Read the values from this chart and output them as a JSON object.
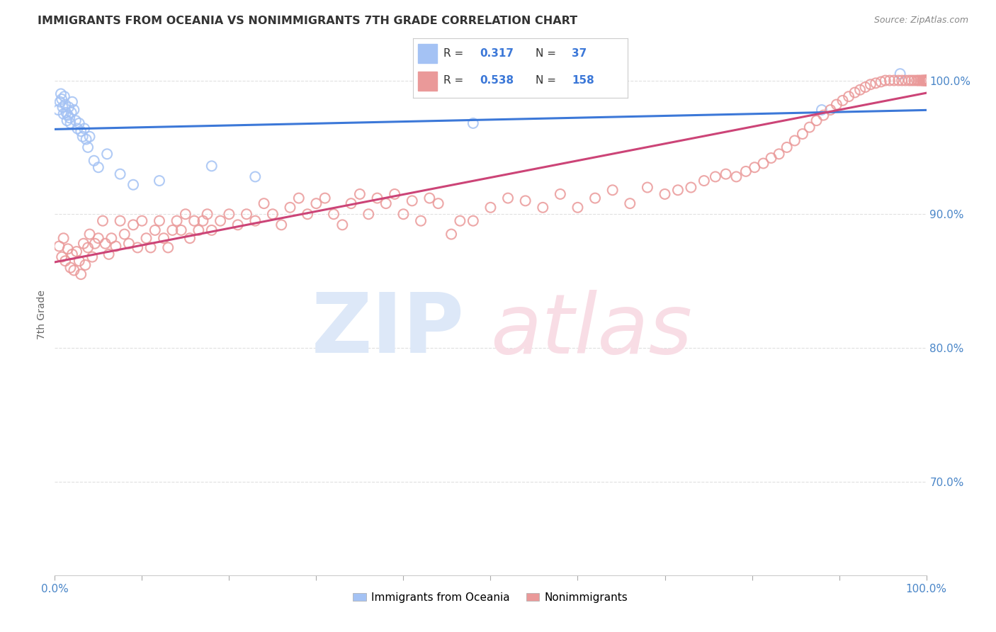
{
  "title": "IMMIGRANTS FROM OCEANIA VS NONIMMIGRANTS 7TH GRADE CORRELATION CHART",
  "source": "Source: ZipAtlas.com",
  "ylabel": "7th Grade",
  "xlim": [
    0.0,
    1.0
  ],
  "ylim": [
    0.63,
    1.02
  ],
  "yticks": [
    0.7,
    0.8,
    0.9,
    1.0
  ],
  "ytick_labels": [
    "70.0%",
    "80.0%",
    "90.0%",
    "100.0%"
  ],
  "blue_color": "#a4c2f4",
  "pink_color": "#ea9999",
  "line_blue": "#3c78d8",
  "line_pink": "#cc4477",
  "axis_label_color": "#4a86c8",
  "background_color": "#ffffff",
  "grid_color": "#e0e0e0",
  "R1": "0.317",
  "N1": "37",
  "R2": "0.538",
  "N2": "158",
  "blue_x": [
    0.004,
    0.006,
    0.007,
    0.008,
    0.009,
    0.01,
    0.011,
    0.012,
    0.013,
    0.014,
    0.015,
    0.016,
    0.017,
    0.018,
    0.019,
    0.02,
    0.022,
    0.024,
    0.026,
    0.028,
    0.03,
    0.032,
    0.034,
    0.036,
    0.038,
    0.04,
    0.045,
    0.05,
    0.06,
    0.075,
    0.09,
    0.12,
    0.18,
    0.23,
    0.48,
    0.88,
    0.97
  ],
  "blue_y": [
    0.978,
    0.984,
    0.99,
    0.986,
    0.98,
    0.975,
    0.988,
    0.982,
    0.976,
    0.97,
    0.974,
    0.98,
    0.972,
    0.968,
    0.976,
    0.984,
    0.978,
    0.97,
    0.964,
    0.968,
    0.962,
    0.958,
    0.964,
    0.956,
    0.95,
    0.958,
    0.94,
    0.935,
    0.945,
    0.93,
    0.922,
    0.925,
    0.936,
    0.928,
    0.968,
    0.978,
    1.005
  ],
  "pink_x": [
    0.005,
    0.008,
    0.01,
    0.012,
    0.015,
    0.018,
    0.02,
    0.022,
    0.025,
    0.028,
    0.03,
    0.033,
    0.035,
    0.038,
    0.04,
    0.043,
    0.046,
    0.05,
    0.055,
    0.058,
    0.062,
    0.065,
    0.07,
    0.075,
    0.08,
    0.085,
    0.09,
    0.095,
    0.1,
    0.105,
    0.11,
    0.115,
    0.12,
    0.125,
    0.13,
    0.135,
    0.14,
    0.145,
    0.15,
    0.155,
    0.16,
    0.165,
    0.17,
    0.175,
    0.18,
    0.19,
    0.2,
    0.21,
    0.22,
    0.23,
    0.24,
    0.25,
    0.26,
    0.27,
    0.28,
    0.29,
    0.3,
    0.31,
    0.32,
    0.33,
    0.34,
    0.35,
    0.36,
    0.37,
    0.38,
    0.39,
    0.4,
    0.41,
    0.42,
    0.43,
    0.44,
    0.455,
    0.465,
    0.48,
    0.5,
    0.52,
    0.54,
    0.56,
    0.58,
    0.6,
    0.62,
    0.64,
    0.66,
    0.68,
    0.7,
    0.715,
    0.73,
    0.745,
    0.758,
    0.77,
    0.782,
    0.793,
    0.803,
    0.813,
    0.822,
    0.831,
    0.84,
    0.849,
    0.858,
    0.866,
    0.874,
    0.882,
    0.89,
    0.897,
    0.904,
    0.911,
    0.918,
    0.924,
    0.93,
    0.936,
    0.942,
    0.948,
    0.953,
    0.958,
    0.963,
    0.968,
    0.972,
    0.976,
    0.98,
    0.983,
    0.986,
    0.989,
    0.991,
    0.993,
    0.995,
    0.996,
    0.997,
    0.998,
    0.999,
    0.999,
    1.0,
    1.0,
    1.001,
    1.001,
    1.001,
    1.002,
    1.002,
    1.002,
    1.002,
    1.002,
    1.002,
    1.002,
    1.002,
    1.002,
    1.002,
    1.002,
    1.002,
    1.002,
    1.002,
    1.002,
    1.002,
    1.002,
    1.002,
    1.002,
    1.002,
    1.002,
    1.002,
    1.002
  ],
  "pink_y": [
    0.876,
    0.868,
    0.882,
    0.865,
    0.874,
    0.86,
    0.87,
    0.858,
    0.872,
    0.865,
    0.855,
    0.878,
    0.862,
    0.875,
    0.885,
    0.868,
    0.878,
    0.882,
    0.895,
    0.878,
    0.87,
    0.882,
    0.876,
    0.895,
    0.885,
    0.878,
    0.892,
    0.875,
    0.895,
    0.882,
    0.875,
    0.888,
    0.895,
    0.882,
    0.875,
    0.888,
    0.895,
    0.888,
    0.9,
    0.882,
    0.895,
    0.888,
    0.895,
    0.9,
    0.888,
    0.895,
    0.9,
    0.892,
    0.9,
    0.895,
    0.908,
    0.9,
    0.892,
    0.905,
    0.912,
    0.9,
    0.908,
    0.912,
    0.9,
    0.892,
    0.908,
    0.915,
    0.9,
    0.912,
    0.908,
    0.915,
    0.9,
    0.91,
    0.895,
    0.912,
    0.908,
    0.885,
    0.895,
    0.895,
    0.905,
    0.912,
    0.91,
    0.905,
    0.915,
    0.905,
    0.912,
    0.918,
    0.908,
    0.92,
    0.915,
    0.918,
    0.92,
    0.925,
    0.928,
    0.93,
    0.928,
    0.932,
    0.935,
    0.938,
    0.942,
    0.945,
    0.95,
    0.955,
    0.96,
    0.965,
    0.97,
    0.974,
    0.978,
    0.982,
    0.985,
    0.988,
    0.991,
    0.993,
    0.995,
    0.997,
    0.998,
    0.999,
    1.0,
    1.0,
    1.0,
    1.0,
    1.0,
    1.0,
    1.0,
    1.0,
    1.0,
    1.0,
    1.0,
    1.0,
    1.0,
    1.0,
    1.0,
    1.0,
    1.0,
    1.0,
    1.0,
    1.0,
    1.0,
    1.0,
    1.0,
    1.0,
    1.0,
    1.0,
    1.0,
    1.0,
    1.0,
    1.0,
    1.0,
    1.0,
    1.0,
    1.0,
    1.0,
    1.0,
    1.0,
    1.0,
    1.0,
    1.0,
    1.0,
    1.0,
    1.0,
    1.0,
    1.0,
    1.0
  ]
}
